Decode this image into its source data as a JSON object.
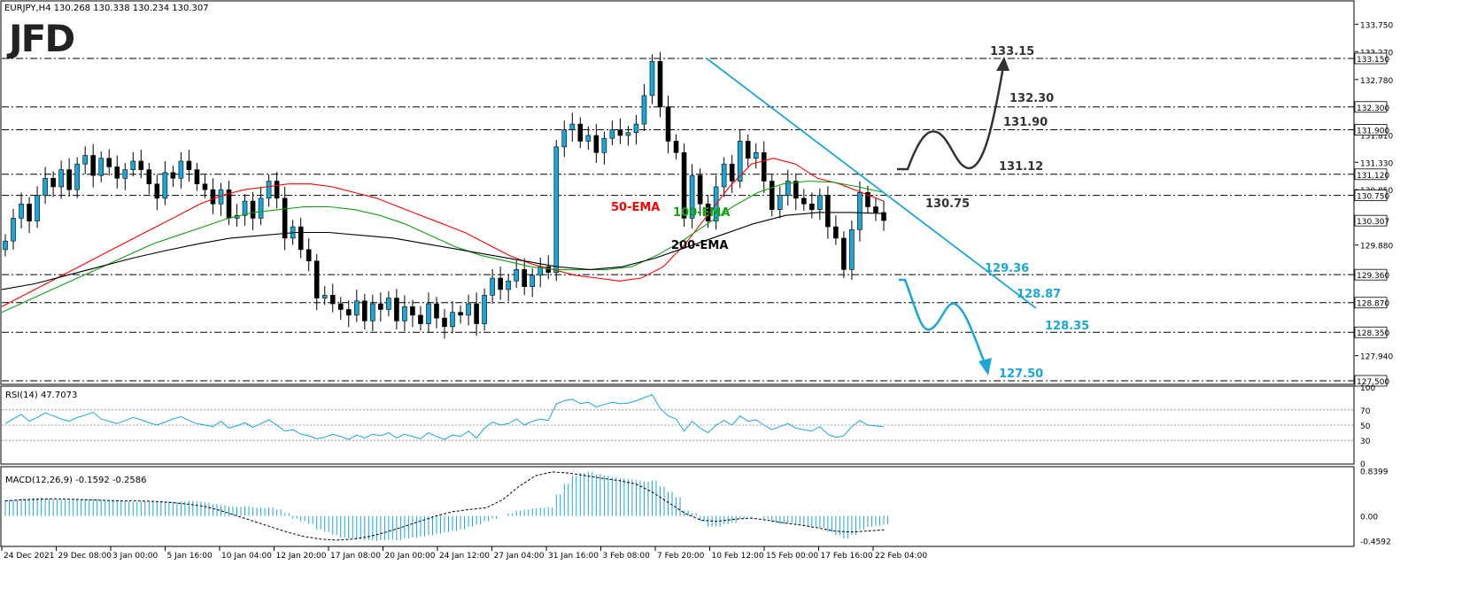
{
  "symbol_header": "EURJPY,H4  130.268 130.338 130.234 130.307",
  "logo": "JFD",
  "chart_data": {
    "type": "candlestick",
    "symbol": "EURJPY,H4",
    "ohlc_last": {
      "open": 130.268,
      "high": 130.338,
      "low": 130.234,
      "close": 130.307
    },
    "price_axis": {
      "range": [
        127.4,
        133.9
      ],
      "ticks": [
        133.75,
        133.27,
        132.78,
        131.81,
        131.33,
        130.85,
        129.88,
        127.94
      ],
      "tick_labels": [
        "133.750",
        "133.270",
        "132.780",
        "131.810",
        "131.330",
        "130.850",
        "129.880",
        "127.940"
      ],
      "level_labels": [
        "133.150",
        "132.300",
        "131.900",
        "131.120",
        "130.750",
        "130.307",
        "129.360",
        "128.870",
        "128.350",
        "127.500"
      ]
    },
    "horizontal_levels": [
      133.15,
      132.3,
      131.9,
      131.12,
      130.75,
      129.36,
      128.87,
      128.35,
      127.5
    ],
    "x_tick_labels": [
      "24 Dec 2021",
      "29 Dec 08:00",
      "3 Jan 00:00",
      "5 Jan 16:00",
      "10 Jan 04:00",
      "12 Jan 20:00",
      "17 Jan 08:00",
      "20 Jan 00:00",
      "24 Jan 12:00",
      "27 Jan 04:00",
      "31 Jan 16:00",
      "3 Feb 08:00",
      "7 Feb 20:00",
      "10 Feb 12:00",
      "15 Feb 00:00",
      "17 Feb 16:00",
      "22 Feb 04:00"
    ],
    "close_path": [
      129.95,
      130.35,
      130.6,
      130.3,
      130.75,
      131.05,
      130.9,
      131.2,
      130.85,
      131.3,
      131.45,
      131.1,
      131.4,
      131.25,
      131.05,
      131.2,
      131.35,
      131.2,
      130.95,
      130.7,
      131.15,
      131.05,
      131.35,
      131.2,
      130.95,
      130.85,
      130.6,
      130.85,
      130.35,
      130.4,
      130.65,
      130.35,
      130.7,
      131.0,
      130.7,
      130.0,
      130.2,
      129.8,
      129.6,
      128.95,
      129.0,
      128.85,
      128.75,
      128.65,
      128.9,
      128.55,
      128.85,
      128.75,
      128.95,
      128.55,
      128.8,
      128.65,
      128.5,
      128.85,
      128.6,
      128.45,
      128.7,
      128.65,
      128.85,
      128.5,
      129.0,
      129.3,
      129.1,
      129.25,
      129.45,
      129.15,
      129.35,
      129.5,
      129.4,
      131.6,
      131.9,
      132.0,
      131.7,
      131.8,
      131.5,
      131.75,
      131.9,
      131.8,
      131.85,
      132.0,
      132.5,
      133.1,
      132.3,
      131.7,
      131.5,
      130.35,
      131.1,
      130.6,
      130.3,
      130.9,
      131.3,
      131.0,
      131.7,
      131.4,
      131.5,
      131.0,
      130.5,
      130.75,
      131.0,
      130.7,
      130.6,
      130.5,
      130.75,
      130.2,
      130.0,
      129.45,
      130.15,
      130.8,
      130.55,
      130.45,
      130.31
    ],
    "ema50_path": [
      128.8,
      129.0,
      129.2,
      129.4,
      129.6,
      129.8,
      130.0,
      130.2,
      130.4,
      130.6,
      130.75,
      130.85,
      130.9,
      130.95,
      130.95,
      130.9,
      130.8,
      130.7,
      130.55,
      130.4,
      130.25,
      130.1,
      129.9,
      129.7,
      129.55,
      129.45,
      129.35,
      129.3,
      129.25,
      129.3,
      129.5,
      129.9,
      130.4,
      130.9,
      131.3,
      131.4,
      131.3,
      131.05,
      130.95,
      130.8,
      130.65
    ],
    "ema100_path": [
      128.7,
      128.9,
      129.1,
      129.3,
      129.5,
      129.7,
      129.9,
      130.05,
      130.2,
      130.35,
      130.45,
      130.5,
      130.55,
      130.55,
      130.5,
      130.4,
      130.25,
      130.05,
      129.85,
      129.7,
      129.6,
      129.5,
      129.45,
      129.45,
      129.45,
      129.5,
      129.7,
      129.95,
      130.25,
      130.55,
      130.8,
      130.95,
      131.0,
      130.98,
      130.9,
      130.8
    ],
    "ema200_path": [
      129.1,
      129.2,
      129.35,
      129.5,
      129.65,
      129.78,
      129.9,
      130.0,
      130.05,
      130.1,
      130.1,
      130.05,
      130.0,
      129.9,
      129.8,
      129.7,
      129.6,
      129.5,
      129.45,
      129.5,
      129.65,
      129.85,
      130.05,
      130.25,
      130.4,
      130.45,
      130.45,
      130.43
    ],
    "series_labels": [
      {
        "name": "50-EMA",
        "color": "#ff0000"
      },
      {
        "name": "100-EMA",
        "color": "#11a011"
      },
      {
        "name": "200-EMA",
        "color": "#000000"
      }
    ],
    "trendline": {
      "from": 133.15,
      "to": 128.35,
      "color": "#1aa7d8"
    },
    "scenario_up": {
      "labels": [
        "133.15",
        "132.30",
        "131.90",
        "131.12",
        "130.75"
      ],
      "color": "#333333"
    },
    "scenario_down": {
      "labels": [
        "129.36",
        "128.87",
        "128.35",
        "127.50"
      ],
      "color": "#1aa7d8"
    },
    "rsi": {
      "label": "RSI(14) 47.7073",
      "range": [
        0,
        100
      ],
      "ticks": [
        100,
        70,
        50,
        30,
        0
      ],
      "tick_labels": [
        "100",
        "70",
        "50",
        "30",
        "0"
      ],
      "levels": [
        70,
        50,
        30
      ],
      "path": [
        52,
        58,
        64,
        55,
        60,
        66,
        62,
        58,
        55,
        60,
        63,
        67,
        58,
        55,
        52,
        56,
        60,
        57,
        53,
        50,
        54,
        58,
        61,
        56,
        52,
        50,
        48,
        55,
        46,
        49,
        53,
        47,
        52,
        57,
        50,
        42,
        44,
        38,
        36,
        32,
        34,
        38,
        35,
        31,
        37,
        33,
        38,
        36,
        40,
        33,
        38,
        35,
        32,
        40,
        35,
        31,
        37,
        35,
        42,
        33,
        46,
        54,
        50,
        52,
        58,
        50,
        55,
        58,
        56,
        78,
        82,
        84,
        78,
        80,
        74,
        77,
        80,
        78,
        79,
        82,
        86,
        90,
        72,
        62,
        58,
        42,
        55,
        46,
        40,
        50,
        56,
        50,
        62,
        55,
        57,
        50,
        44,
        48,
        52,
        46,
        44,
        42,
        48,
        38,
        34,
        36,
        48,
        56,
        50,
        49,
        48
      ]
    },
    "macd": {
      "label": "MACD(12,26,9) -0.1592 -0.2586",
      "range": [
        -0.55,
        0.9
      ],
      "ticks": [
        0.8399,
        0.0,
        -0.4592
      ],
      "tick_labels": [
        "0.8399",
        "0.00",
        "-0.4592"
      ],
      "histogram": [
        0.3,
        0.3,
        0.32,
        0.33,
        0.34,
        0.32,
        0.31,
        0.3,
        0.3,
        0.3,
        0.31,
        0.32,
        0.3,
        0.29,
        0.28,
        0.27,
        0.26,
        0.27,
        0.28,
        0.28,
        0.27,
        0.26,
        0.27,
        0.28,
        0.27,
        0.25,
        0.22,
        0.2,
        0.18,
        0.17,
        0.18,
        0.16,
        0.15,
        0.16,
        0.12,
        0.05,
        -0.05,
        -0.1,
        -0.15,
        -0.25,
        -0.3,
        -0.35,
        -0.4,
        -0.42,
        -0.44,
        -0.45,
        -0.46,
        -0.45,
        -0.44,
        -0.45,
        -0.42,
        -0.4,
        -0.38,
        -0.36,
        -0.33,
        -0.3,
        -0.28,
        -0.25,
        -0.2,
        -0.16,
        -0.1,
        -0.05,
        0.0,
        0.05,
        0.1,
        0.12,
        0.14,
        0.15,
        0.16,
        0.4,
        0.6,
        0.75,
        0.8,
        0.82,
        0.78,
        0.75,
        0.72,
        0.7,
        0.68,
        0.66,
        0.64,
        0.66,
        0.55,
        0.45,
        0.35,
        0.1,
        0.05,
        -0.1,
        -0.2,
        -0.2,
        -0.15,
        -0.12,
        -0.05,
        -0.02,
        0.0,
        -0.05,
        -0.12,
        -0.15,
        -0.13,
        -0.15,
        -0.18,
        -0.2,
        -0.22,
        -0.3,
        -0.36,
        -0.42,
        -0.35,
        -0.25,
        -0.2,
        -0.18,
        -0.16
      ],
      "signal": [
        0.28,
        0.3,
        0.31,
        0.32,
        0.31,
        0.3,
        0.29,
        0.28,
        0.28,
        0.27,
        0.25,
        0.22,
        0.18,
        0.1,
        0.0,
        -0.1,
        -0.2,
        -0.3,
        -0.38,
        -0.43,
        -0.45,
        -0.43,
        -0.38,
        -0.3,
        -0.2,
        -0.1,
        0.0,
        0.08,
        0.12,
        0.15,
        0.3,
        0.55,
        0.75,
        0.82,
        0.8,
        0.75,
        0.7,
        0.66,
        0.6,
        0.45,
        0.25,
        0.05,
        -0.08,
        -0.1,
        -0.06,
        -0.04,
        -0.08,
        -0.13,
        -0.17,
        -0.22,
        -0.28,
        -0.3,
        -0.28,
        -0.26
      ]
    }
  }
}
